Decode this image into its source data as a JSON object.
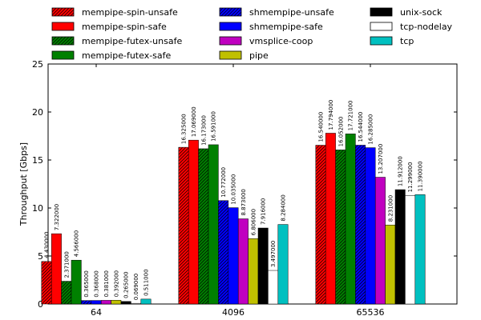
{
  "chart_data": {
    "type": "bar",
    "title": "",
    "xlabel": "",
    "ylabel": "Throughput [Gbps]",
    "ylim": [
      0,
      25
    ],
    "yticks": [
      0,
      5,
      10,
      15,
      20,
      25
    ],
    "grid": false,
    "legend_position": "top",
    "categories": [
      "64",
      "4096",
      "65536"
    ],
    "series": [
      {
        "name": "mempipe-spin-unsafe",
        "color": "#ff0000",
        "hatch": true,
        "values": [
          4.43,
          16.325,
          16.54
        ],
        "labels": [
          "4.430000",
          "16.325000",
          "16.540000"
        ]
      },
      {
        "name": "mempipe-spin-safe",
        "color": "#ff0000",
        "hatch": false,
        "values": [
          7.322,
          17.069,
          17.794
        ],
        "labels": [
          "7.322000",
          "17.069000",
          "17.794000"
        ]
      },
      {
        "name": "mempipe-futex-unsafe",
        "color": "#008000",
        "hatch": true,
        "values": [
          2.371,
          16.173,
          16.052
        ],
        "labels": [
          "2.371000",
          "16.173000",
          "16.052000"
        ]
      },
      {
        "name": "mempipe-futex-safe",
        "color": "#008000",
        "hatch": false,
        "values": [
          4.566,
          16.591,
          17.721
        ],
        "labels": [
          "4.566000",
          "16.591000",
          "17.721000"
        ]
      },
      {
        "name": "shmempipe-unsafe",
        "color": "#0000ff",
        "hatch": true,
        "values": [
          0.365,
          10.772,
          16.544
        ],
        "labels": [
          "0.365000",
          "10.772000",
          "16.544000"
        ]
      },
      {
        "name": "shmempipe-safe",
        "color": "#0000ff",
        "hatch": false,
        "values": [
          0.368,
          10.035,
          16.285
        ],
        "labels": [
          "0.368000",
          "10.035000",
          "16.285000"
        ]
      },
      {
        "name": "vmsplice-coop",
        "color": "#c000c0",
        "hatch": false,
        "values": [
          0.381,
          8.873,
          13.207
        ],
        "labels": [
          "0.381000",
          "8.873000",
          "13.207000"
        ]
      },
      {
        "name": "pipe",
        "color": "#c0c000",
        "hatch": false,
        "values": [
          0.392,
          6.806,
          8.231
        ],
        "labels": [
          "0.392000",
          "6.806000",
          "8.231000"
        ]
      },
      {
        "name": "unix-sock",
        "color": "#000000",
        "hatch": false,
        "values": [
          0.265,
          7.916,
          11.912
        ],
        "labels": [
          "0.265000",
          "7.916000",
          "11.912000"
        ]
      },
      {
        "name": "tcp-nodelay",
        "color": "#ffffff",
        "hatch": false,
        "values": [
          0.069,
          3.497,
          11.299
        ],
        "labels": [
          "0.069000",
          "3.497000",
          "11.299000"
        ]
      },
      {
        "name": "tcp",
        "color": "#00c0c0",
        "hatch": false,
        "values": [
          0.511,
          8.284,
          11.39
        ],
        "labels": [
          "0.511000",
          "8.284000",
          "11.390000"
        ]
      }
    ]
  }
}
